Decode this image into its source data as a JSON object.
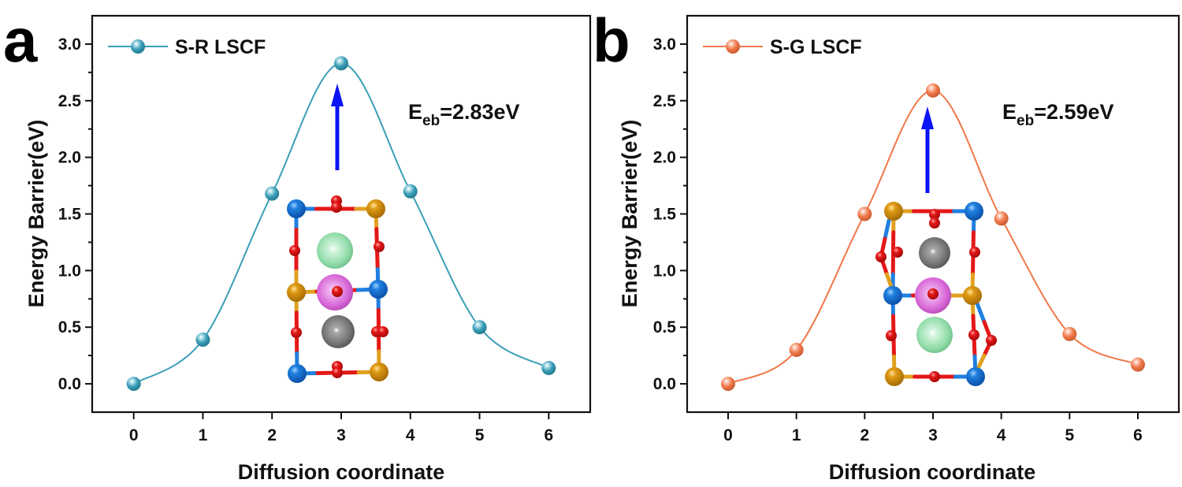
{
  "chart_data": [
    {
      "type": "line",
      "panel_label": "a",
      "series": [
        {
          "name": "S-R LSCF",
          "color": "#3a9fb8",
          "marker": "sphere",
          "x": [
            0,
            1,
            2,
            3,
            4,
            5,
            6
          ],
          "values": [
            0.0,
            0.39,
            1.68,
            2.83,
            1.7,
            0.5,
            0.14
          ]
        }
      ],
      "xlabel": "Diffusion coordinate",
      "ylabel": "Energy Barrier(eV)",
      "xlim": [
        -0.6,
        6.6
      ],
      "ylim": [
        -0.25,
        3.25
      ],
      "xticks": [
        "0",
        "1",
        "2",
        "3",
        "4",
        "5",
        "6"
      ],
      "yticks": [
        "0.0",
        "0.5",
        "1.0",
        "1.5",
        "2.0",
        "2.5",
        "3.0"
      ],
      "legend": "top-left",
      "grid": false,
      "annotation": {
        "main": "E",
        "sub": "eb",
        "value": "=2.83eV"
      },
      "arrow_color": "#0a14f5",
      "inset": "crystal-structure (green, magenta, gray cations; red O; blue and gold B-site)"
    },
    {
      "type": "line",
      "panel_label": "b",
      "series": [
        {
          "name": "S-G LSCF",
          "color": "#f0784a",
          "marker": "sphere",
          "x": [
            0,
            1,
            2,
            3,
            4,
            5,
            6
          ],
          "values": [
            0.0,
            0.3,
            1.5,
            2.59,
            1.46,
            0.44,
            0.17
          ]
        }
      ],
      "xlabel": "Diffusion coordinate",
      "ylabel": "Energy Barrier(eV)",
      "xlim": [
        -0.6,
        6.6
      ],
      "ylim": [
        -0.25,
        3.25
      ],
      "xticks": [
        "0",
        "1",
        "2",
        "3",
        "4",
        "5",
        "6"
      ],
      "yticks": [
        "0.0",
        "0.5",
        "1.0",
        "1.5",
        "2.0",
        "2.5",
        "3.0"
      ],
      "legend": "top-left",
      "grid": false,
      "annotation": {
        "main": "E",
        "sub": "eb",
        "value": "=2.59eV"
      },
      "arrow_color": "#0a14f5",
      "inset": "crystal-structure (gray, magenta, green cations; red O; blue and gold B-site)"
    }
  ]
}
